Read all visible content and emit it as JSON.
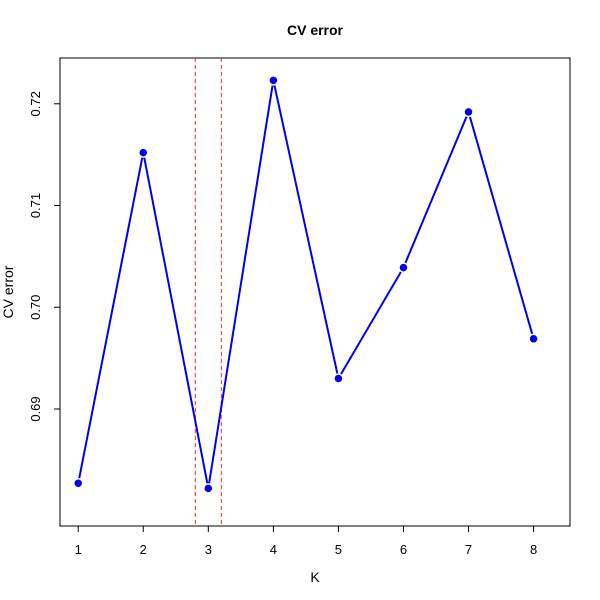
{
  "chart_data": {
    "type": "line",
    "title": "CV error",
    "xlabel": "K",
    "ylabel": "CV error",
    "x": [
      1,
      2,
      3,
      4,
      5,
      6,
      7,
      8
    ],
    "series": [
      {
        "values": [
          0.6827,
          0.7152,
          0.6822,
          0.7223,
          0.693,
          0.7039,
          0.7192,
          0.6969
        ],
        "color": "#0000ee"
      }
    ],
    "xlim": [
      0.72,
      8.56
    ],
    "ylim": [
      0.6785,
      0.7245
    ],
    "xticks": [
      "1",
      "2",
      "3",
      "4",
      "5",
      "6",
      "7",
      "8"
    ],
    "yticks": [
      "0.69",
      "0.70",
      "0.71",
      "0.72"
    ],
    "reference_lines": [
      {
        "x": 2.8,
        "color": "#e03030",
        "style": "dashed"
      },
      {
        "x": 3.2,
        "color": "#e03030",
        "style": "dashed"
      }
    ],
    "grid": false,
    "legend": "none"
  }
}
